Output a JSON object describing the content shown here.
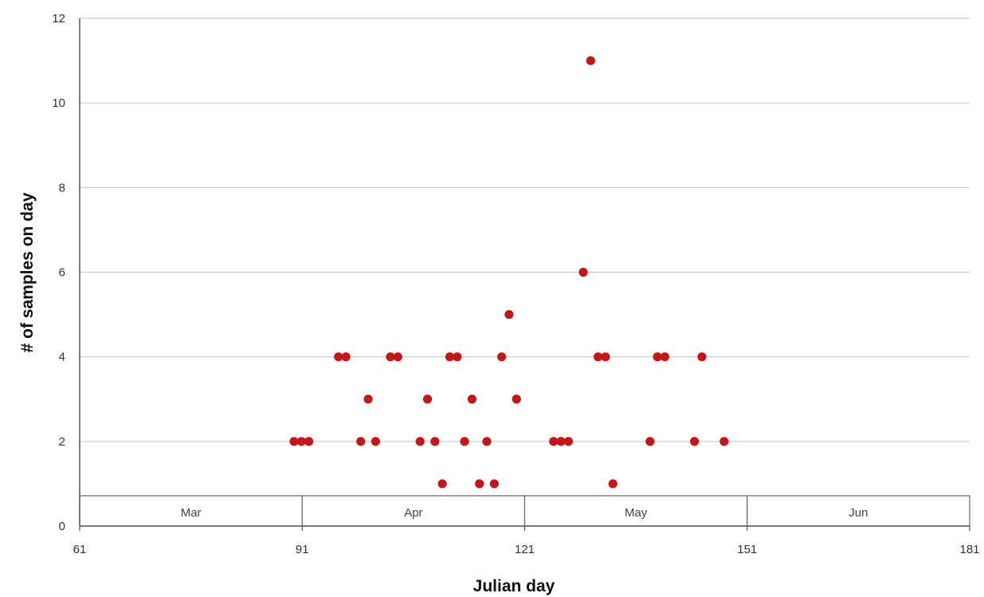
{
  "chart_data": {
    "type": "scatter",
    "xlabel": "Julian day",
    "ylabel": "# of samples on day",
    "xlim": [
      61,
      181
    ],
    "ylim": [
      0,
      12
    ],
    "x_ticks": [
      61,
      91,
      121,
      151,
      181
    ],
    "y_ticks": [
      0,
      2,
      4,
      6,
      8,
      10,
      12
    ],
    "grid": "horizontal",
    "color": "#c81414",
    "month_bands": [
      {
        "label": "Mar",
        "start": 61,
        "end": 91
      },
      {
        "label": "Apr",
        "start": 91,
        "end": 121
      },
      {
        "label": "May",
        "start": 121,
        "end": 151
      },
      {
        "label": "Jun",
        "start": 151,
        "end": 181
      }
    ],
    "points": [
      {
        "x": 89.9,
        "y": 2
      },
      {
        "x": 90.9,
        "y": 2
      },
      {
        "x": 91.9,
        "y": 2
      },
      {
        "x": 95.9,
        "y": 4
      },
      {
        "x": 96.9,
        "y": 4
      },
      {
        "x": 98.9,
        "y": 2
      },
      {
        "x": 99.9,
        "y": 3
      },
      {
        "x": 100.9,
        "y": 2
      },
      {
        "x": 102.9,
        "y": 4
      },
      {
        "x": 103.9,
        "y": 4
      },
      {
        "x": 106.9,
        "y": 2
      },
      {
        "x": 107.9,
        "y": 3
      },
      {
        "x": 108.9,
        "y": 2
      },
      {
        "x": 109.9,
        "y": 1
      },
      {
        "x": 110.9,
        "y": 4
      },
      {
        "x": 111.9,
        "y": 4
      },
      {
        "x": 112.9,
        "y": 2
      },
      {
        "x": 113.9,
        "y": 3
      },
      {
        "x": 114.9,
        "y": 1
      },
      {
        "x": 115.9,
        "y": 2
      },
      {
        "x": 116.9,
        "y": 1
      },
      {
        "x": 117.9,
        "y": 4
      },
      {
        "x": 118.9,
        "y": 5
      },
      {
        "x": 119.9,
        "y": 3
      },
      {
        "x": 124.9,
        "y": 2
      },
      {
        "x": 125.9,
        "y": 2
      },
      {
        "x": 126.9,
        "y": 2
      },
      {
        "x": 128.9,
        "y": 6
      },
      {
        "x": 129.9,
        "y": 11
      },
      {
        "x": 130.9,
        "y": 4
      },
      {
        "x": 131.9,
        "y": 4
      },
      {
        "x": 132.9,
        "y": 1
      },
      {
        "x": 137.9,
        "y": 2
      },
      {
        "x": 138.9,
        "y": 4
      },
      {
        "x": 139.9,
        "y": 4
      },
      {
        "x": 143.9,
        "y": 2
      },
      {
        "x": 144.9,
        "y": 4
      },
      {
        "x": 147.9,
        "y": 2
      }
    ]
  }
}
